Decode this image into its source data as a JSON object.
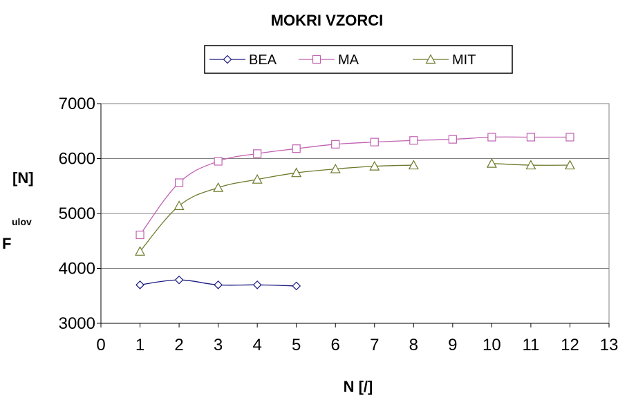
{
  "chart_data": {
    "type": "line",
    "title": "MOKRI VZORCI",
    "xlabel": "N [/]",
    "ylabel": {
      "unit": "[N]",
      "subscript": "ulov",
      "symbol": "F"
    },
    "xlim": [
      0,
      13
    ],
    "ylim": [
      3000,
      7000
    ],
    "x_ticks": [
      "0",
      "1",
      "2",
      "3",
      "4",
      "5",
      "6",
      "7",
      "8",
      "9",
      "10",
      "11",
      "12",
      "13"
    ],
    "y_ticks": [
      "3000",
      "4000",
      "5000",
      "6000",
      "7000"
    ],
    "grid": "horizontal",
    "legend_position": "top",
    "series": [
      {
        "name": "BEA",
        "marker": "diamond",
        "color": "#1a1a80",
        "x": [
          1,
          2,
          3,
          4,
          5
        ],
        "y": [
          3700,
          3790,
          3700,
          3700,
          3680
        ]
      },
      {
        "name": "MA",
        "marker": "square",
        "color": "#c060b0",
        "x": [
          1,
          2,
          3,
          4,
          5,
          6,
          7,
          8,
          9,
          10,
          11,
          12
        ],
        "y": [
          4610,
          5560,
          5950,
          6090,
          6180,
          6260,
          6300,
          6330,
          6350,
          6390,
          6390,
          6390
        ]
      },
      {
        "name": "MIT",
        "marker": "triangle",
        "color": "#6b7a2a",
        "segments": [
          {
            "x": [
              1,
              2,
              3,
              4,
              5,
              6,
              7,
              8
            ],
            "y": [
              4310,
              5140,
              5470,
              5620,
              5740,
              5810,
              5860,
              5880
            ]
          },
          {
            "x": [
              10,
              11,
              12
            ],
            "y": [
              5910,
              5880,
              5880
            ]
          }
        ]
      }
    ]
  }
}
